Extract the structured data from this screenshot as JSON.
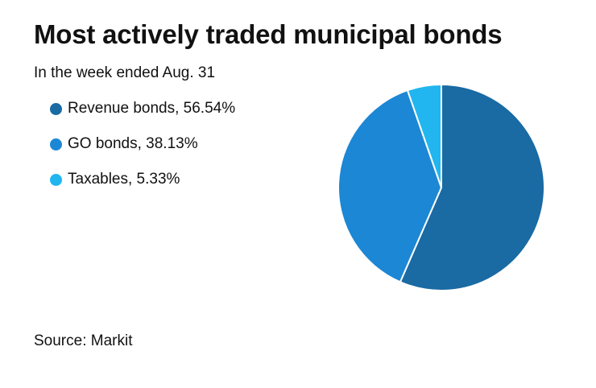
{
  "header": {
    "title": "Most actively traded municipal bonds",
    "subtitle": "In the week ended Aug. 31"
  },
  "footer": {
    "source": "Source: Markit"
  },
  "chart_data": {
    "type": "pie",
    "title": "Most actively traded municipal bonds",
    "subtitle": "In the week ended Aug. 31",
    "legend_placement": "left",
    "start_angle": "12 o'clock, clockwise",
    "slices": [
      {
        "label": "Revenue bonds, 56.54%",
        "value": 56.54,
        "color": "#1a6aa3"
      },
      {
        "label": "GO bonds, 38.13%",
        "value": 38.13,
        "color": "#1c87d4"
      },
      {
        "label": "Taxables, 5.33%",
        "value": 5.33,
        "color": "#21b6ef"
      }
    ]
  }
}
